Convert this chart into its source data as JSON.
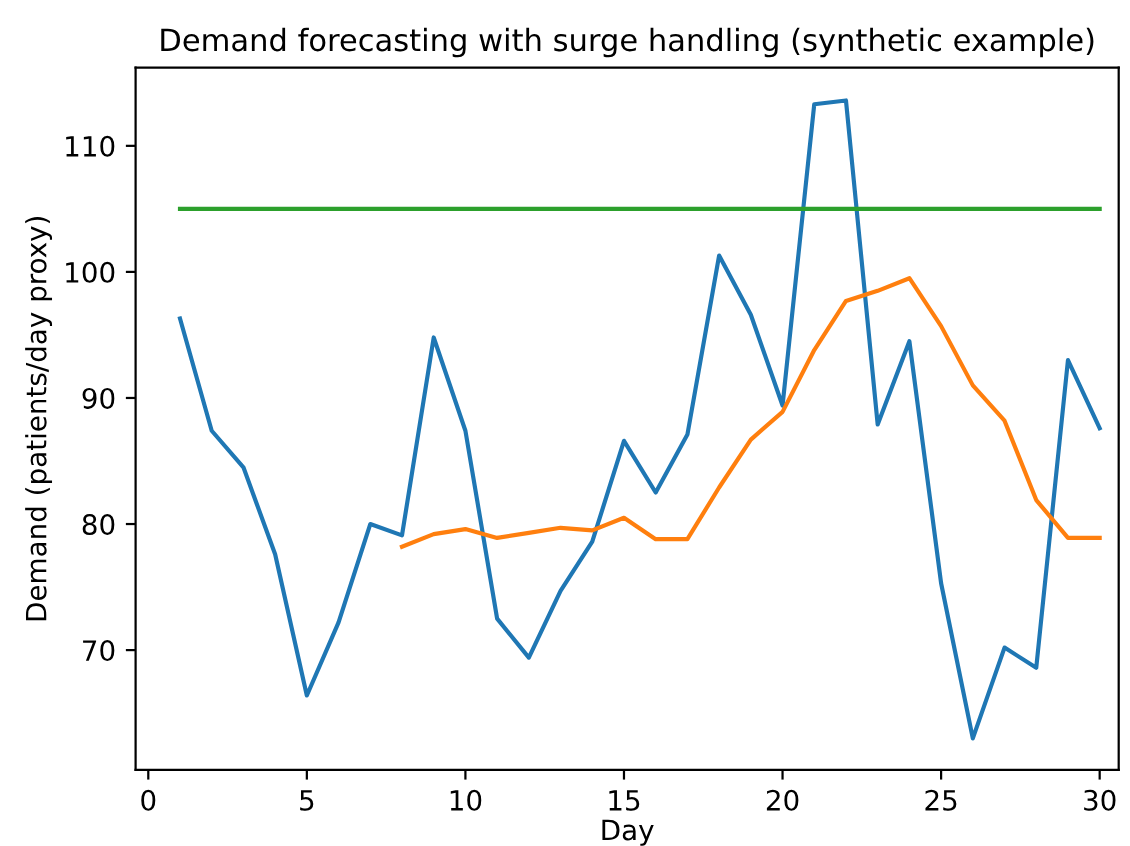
{
  "chart_data": {
    "type": "line",
    "title": "Demand forecasting with surge handling (synthetic example)",
    "xlabel": "Day",
    "ylabel": "Demand (patients/day proxy)",
    "xlim": [
      -0.4,
      30.6
    ],
    "xticks": [
      0,
      5,
      10,
      15,
      20,
      25,
      30
    ],
    "ylim": [
      60.5,
      116.2
    ],
    "yticks": [
      70,
      80,
      90,
      100,
      110
    ],
    "grid": false,
    "series": [
      {
        "color": "#1f77b4",
        "x": [
          1,
          2,
          3,
          4,
          5,
          6,
          7,
          8,
          9,
          10,
          11,
          12,
          13,
          14,
          15,
          16,
          17,
          18,
          19,
          20,
          21,
          22,
          23,
          24,
          25,
          26,
          27,
          28,
          29,
          30
        ],
        "values": [
          96.3,
          87.4,
          84.5,
          77.6,
          66.4,
          72.2,
          80.0,
          79.1,
          94.8,
          87.4,
          72.5,
          69.4,
          74.7,
          78.6,
          86.6,
          82.5,
          87.1,
          101.3,
          96.6,
          89.4,
          113.3,
          113.6,
          87.9,
          94.5,
          75.3,
          63.0,
          70.2,
          68.6,
          93.0,
          87.6
        ]
      },
      {
        "color": "#ff7f0e",
        "x": [
          8,
          9,
          10,
          11,
          12,
          13,
          14,
          15,
          16,
          17,
          18,
          19,
          20,
          21,
          22,
          23,
          24,
          25,
          26,
          27,
          28,
          29,
          30
        ],
        "values": [
          78.2,
          79.2,
          79.6,
          78.9,
          79.3,
          79.7,
          79.5,
          80.5,
          78.8,
          78.8,
          82.9,
          86.7,
          88.9,
          93.8,
          97.7,
          98.5,
          99.5,
          95.7,
          91.0,
          88.2,
          81.9,
          78.9,
          78.9
        ]
      },
      {
        "color": "#2ca02c",
        "x": [
          1,
          30
        ],
        "values": [
          105,
          105
        ]
      }
    ]
  }
}
